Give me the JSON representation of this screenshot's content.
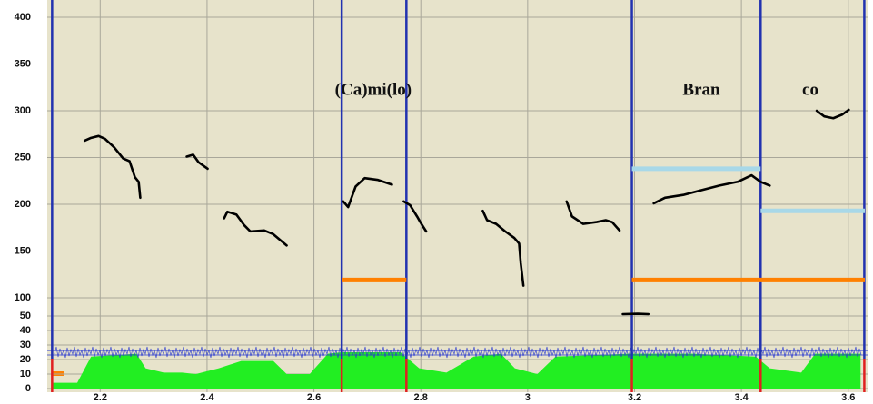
{
  "chart_data": {
    "type": "pitch",
    "xlim": [
      2.106,
      3.631
    ],
    "xticks": [
      2.2,
      2.4,
      2.6,
      2.8,
      3,
      3.2,
      3.4,
      3.6
    ],
    "ylim": [
      0,
      400
    ],
    "yticks": [
      0,
      10,
      20,
      30,
      40,
      50,
      100,
      150,
      200,
      250,
      300,
      350,
      400
    ],
    "grid": true,
    "contour_color": "#000000",
    "contours": [
      {
        "x": [
          2.171,
          2.183,
          2.197,
          2.209,
          2.226,
          2.243,
          2.255,
          2.265,
          2.272,
          2.275
        ],
        "values": [
          268,
          271,
          273,
          270,
          261,
          249,
          246,
          229,
          224,
          207
        ]
      },
      {
        "x": [
          2.362,
          2.374,
          2.384,
          2.401
        ],
        "values": [
          251,
          253,
          245,
          238
        ]
      },
      {
        "x": [
          2.432,
          2.438,
          2.455,
          2.469,
          2.481,
          2.507,
          2.524,
          2.549
        ],
        "values": [
          185,
          192,
          189,
          178,
          171,
          172,
          168,
          156
        ]
      },
      {
        "x": [
          2.655,
          2.664,
          2.678,
          2.695,
          2.72,
          2.746
        ],
        "values": [
          203,
          197,
          219,
          228,
          226,
          221
        ]
      },
      {
        "x": [
          2.768,
          2.78,
          2.793,
          2.8,
          2.81
        ],
        "values": [
          203,
          199,
          187,
          180,
          171
        ]
      },
      {
        "x": [
          2.916,
          2.924,
          2.941,
          2.958,
          2.975,
          2.984,
          2.987,
          2.992
        ],
        "values": [
          193,
          183,
          179,
          171,
          164,
          158,
          137,
          113
        ]
      },
      {
        "x": [
          3.073,
          3.083,
          3.104,
          3.129,
          3.146,
          3.158,
          3.172
        ],
        "values": [
          203,
          187,
          179,
          181,
          183,
          181,
          172
        ]
      },
      {
        "x": [
          3.178,
          3.206,
          3.226
        ],
        "values": [
          55,
          56,
          55
        ]
      },
      {
        "x": [
          3.236,
          3.257,
          3.291,
          3.325,
          3.359,
          3.393,
          3.419,
          3.436,
          3.453
        ],
        "values": [
          201,
          207,
          210,
          215,
          220,
          224,
          231,
          224,
          220
        ]
      },
      {
        "x": [
          3.541,
          3.555,
          3.572,
          3.589,
          3.601
        ],
        "values": [
          300,
          294,
          292,
          296,
          301
        ]
      }
    ],
    "levels": [
      {
        "start": 2.652,
        "end": 2.773,
        "value": 119,
        "color": "#ff8000"
      },
      {
        "start": 3.195,
        "end": 3.631,
        "value": 119,
        "color": "#ff8000"
      },
      {
        "start": 3.195,
        "end": 3.436,
        "value": 238,
        "color": "#a8d8e8"
      },
      {
        "start": 3.436,
        "end": 3.631,
        "value": 193,
        "color": "#a8d8e8"
      }
    ],
    "boundaries": {
      "x": [
        2.11,
        2.652,
        2.773,
        3.195,
        3.436,
        3.63
      ],
      "color": "#2232b0"
    },
    "energy": {
      "color": "#22ee22",
      "x": [
        2.11,
        2.157,
        2.183,
        2.268,
        2.285,
        2.319,
        2.353,
        2.379,
        2.422,
        2.464,
        2.524,
        2.549,
        2.592,
        2.626,
        2.652,
        2.762,
        2.797,
        2.848,
        2.899,
        2.95,
        2.976,
        3.018,
        3.052,
        3.189,
        3.308,
        3.427,
        3.453,
        3.512,
        3.538,
        3.623
      ],
      "values": [
        4,
        4,
        22,
        24,
        14,
        11,
        11,
        10,
        14,
        19,
        19,
        10,
        10,
        24,
        25,
        25,
        14,
        11,
        22,
        24,
        14,
        10,
        22,
        24,
        24,
        22,
        14,
        11,
        24,
        24
      ]
    },
    "annotations": [
      {
        "text": "(Ca)mi(lo)",
        "x": 2.711,
        "y": 321
      },
      {
        "text": "Bran",
        "x": 3.325,
        "y": 321
      },
      {
        "text": "co",
        "x": 3.529,
        "y": 321
      }
    ]
  }
}
